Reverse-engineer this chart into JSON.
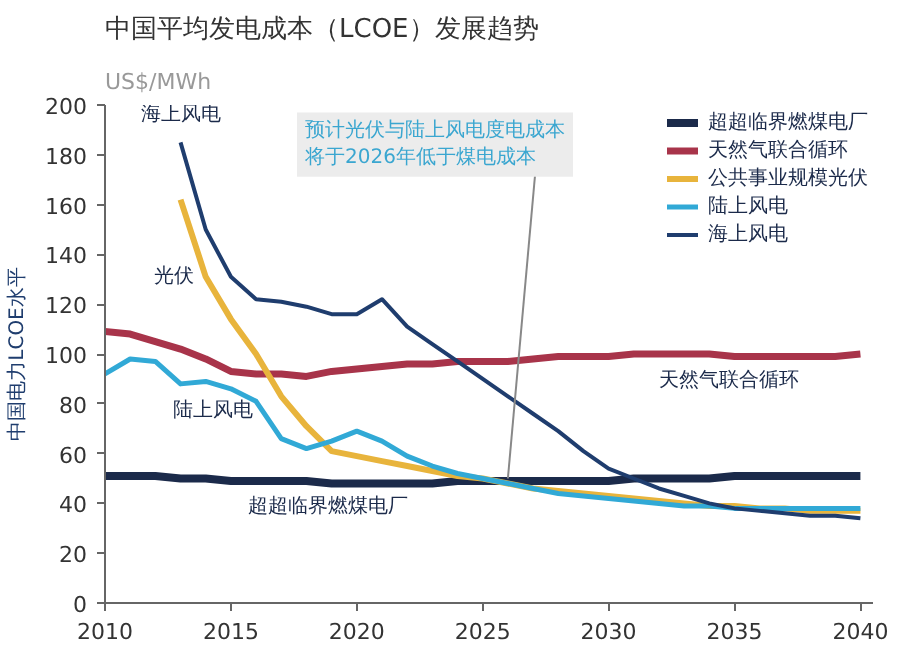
{
  "chart_data": {
    "type": "line",
    "title": "中国平均发电成本（LCOE）发展趋势",
    "subtitle": "US$/MWh",
    "ylabel": "中国电力LCOE水平",
    "x": [
      2010,
      2011,
      2012,
      2013,
      2014,
      2015,
      2016,
      2017,
      2018,
      2019,
      2020,
      2021,
      2022,
      2023,
      2024,
      2025,
      2026,
      2027,
      2028,
      2029,
      2030,
      2031,
      2032,
      2033,
      2034,
      2035,
      2036,
      2037,
      2038,
      2039,
      2040
    ],
    "series": [
      {
        "name": "超超临界燃煤电厂",
        "color": "#1b2a4a",
        "values": [
          51,
          51,
          51,
          50,
          50,
          49,
          49,
          49,
          49,
          48,
          48,
          48,
          48,
          48,
          49,
          49,
          49,
          49,
          49,
          49,
          49,
          50,
          50,
          50,
          50,
          51,
          51,
          51,
          51,
          51,
          51
        ]
      },
      {
        "name": "天然气联合循环",
        "color": "#a8344a",
        "values": [
          109,
          108,
          105,
          102,
          98,
          93,
          92,
          92,
          91,
          93,
          94,
          95,
          96,
          96,
          97,
          97,
          97,
          98,
          99,
          99,
          99,
          100,
          100,
          100,
          100,
          99,
          99,
          99,
          99,
          99,
          100
        ]
      },
      {
        "name": "公共事业规模光伏",
        "color": "#e8b43c",
        "values": [
          null,
          null,
          null,
          162,
          131,
          114,
          100,
          83,
          71,
          61,
          59,
          57,
          55,
          53,
          51,
          50,
          48,
          46,
          45,
          44,
          43,
          42,
          41,
          40,
          39,
          39,
          38,
          38,
          37,
          37,
          37
        ]
      },
      {
        "name": "陆上风电",
        "color": "#31a9d6",
        "values": [
          92,
          98,
          97,
          88,
          89,
          86,
          81,
          66,
          62,
          65,
          69,
          65,
          59,
          55,
          52,
          50,
          48,
          46,
          44,
          43,
          42,
          41,
          40,
          39,
          39,
          38,
          38,
          38,
          38,
          38,
          38
        ]
      },
      {
        "name": "海上风电",
        "color": "#1f3d6e",
        "values": [
          null,
          null,
          null,
          185,
          150,
          131,
          122,
          121,
          119,
          116,
          116,
          122,
          111,
          104,
          97,
          90,
          83,
          76,
          69,
          61,
          54,
          50,
          46,
          43,
          40,
          38,
          37,
          36,
          35,
          35,
          34
        ]
      }
    ],
    "xlim": [
      2010,
      2040.5
    ],
    "ylim": [
      0,
      200
    ],
    "xticks": [
      2010,
      2015,
      2020,
      2025,
      2030,
      2035,
      2040
    ],
    "yticks": [
      0,
      20,
      40,
      60,
      80,
      100,
      120,
      140,
      160,
      180,
      200
    ],
    "grid": false,
    "legend": "top right",
    "marker": "none",
    "line_style": "solid",
    "annotations": [
      {
        "text": "海上风电",
        "x": 2013,
        "y": 185
      },
      {
        "text": "光伏",
        "x": 2014,
        "y": 131
      },
      {
        "text": "陆上风电",
        "x": 2013,
        "y": 88
      },
      {
        "text": "天然气联合循环",
        "x": 2032,
        "y": 100
      },
      {
        "text": "超超临界燃煤电厂",
        "x": 2016,
        "y": 49.5
      },
      {
        "text": "预计光伏与陆上风电度电成本将于2026年低于煤电成本",
        "x": 2026,
        "y": 50
      }
    ]
  }
}
